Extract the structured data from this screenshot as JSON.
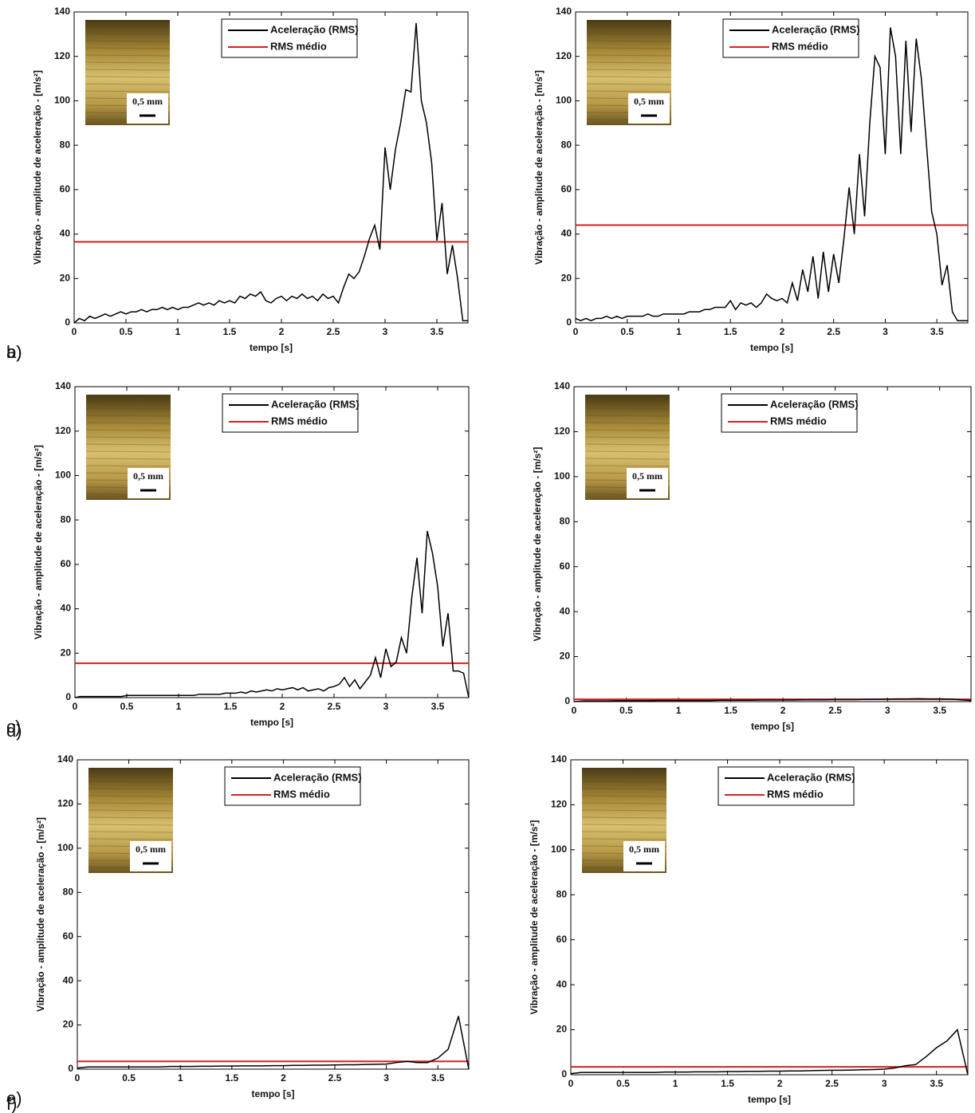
{
  "chart_data": [
    {
      "type": "line",
      "label": "a)",
      "xlabel": "tempo [s]",
      "ylabel": "Vibração - amplitude de aceleração - [m/s²]",
      "scale_label": "0,5 mm",
      "xlim": [
        0,
        3.8
      ],
      "ylim": [
        0,
        140
      ],
      "xticks": [
        0,
        0.5,
        1,
        1.5,
        2,
        2.5,
        3,
        3.5
      ],
      "yticks": [
        0,
        20,
        40,
        60,
        80,
        100,
        120,
        140
      ],
      "x": [
        0,
        0.05,
        0.1,
        0.15,
        0.2,
        0.25,
        0.3,
        0.35,
        0.4,
        0.45,
        0.5,
        0.55,
        0.6,
        0.65,
        0.7,
        0.75,
        0.8,
        0.85,
        0.9,
        0.95,
        1,
        1.05,
        1.1,
        1.15,
        1.2,
        1.25,
        1.3,
        1.35,
        1.4,
        1.45,
        1.5,
        1.55,
        1.6,
        1.65,
        1.7,
        1.75,
        1.8,
        1.85,
        1.9,
        1.95,
        2,
        2.05,
        2.1,
        2.15,
        2.2,
        2.25,
        2.3,
        2.35,
        2.4,
        2.45,
        2.5,
        2.55,
        2.6,
        2.65,
        2.7,
        2.75,
        2.8,
        2.85,
        2.9,
        2.95,
        3,
        3.05,
        3.1,
        3.15,
        3.2,
        3.25,
        3.3,
        3.35,
        3.4,
        3.45,
        3.5,
        3.55,
        3.6,
        3.65,
        3.7,
        3.75,
        3.8
      ],
      "series": [
        {
          "name": "Aceleração (RMS)",
          "color": "#000000",
          "values": [
            0,
            2,
            1,
            3,
            2,
            3,
            4,
            3,
            4,
            5,
            4,
            5,
            5,
            6,
            5,
            6,
            6,
            7,
            6,
            7,
            6,
            7,
            7,
            8,
            9,
            8,
            9,
            8,
            10,
            9,
            10,
            9,
            12,
            11,
            13,
            12,
            14,
            10,
            9,
            11,
            12,
            10,
            12,
            11,
            13,
            11,
            12,
            10,
            13,
            11,
            12,
            9,
            16,
            22,
            20,
            23,
            30,
            38,
            44,
            33,
            79,
            60,
            78,
            90,
            105,
            104,
            135,
            100,
            90,
            72,
            37,
            54,
            22,
            35,
            20,
            1,
            1
          ]
        }
      ],
      "hline": {
        "name": "RMS médio",
        "color": "#d42020",
        "value": 36.5
      }
    },
    {
      "type": "line",
      "label": "b)",
      "xlabel": "tempo [s]",
      "ylabel": "Vibração - amplitude de aceleração - [m/s²]",
      "scale_label": "0,5 mm",
      "xlim": [
        0,
        3.8
      ],
      "ylim": [
        0,
        140
      ],
      "xticks": [
        0,
        0.5,
        1,
        1.5,
        2,
        2.5,
        3,
        3.5
      ],
      "yticks": [
        0,
        20,
        40,
        60,
        80,
        100,
        120,
        140
      ],
      "x": [
        0,
        0.05,
        0.1,
        0.15,
        0.2,
        0.25,
        0.3,
        0.35,
        0.4,
        0.45,
        0.5,
        0.55,
        0.6,
        0.65,
        0.7,
        0.75,
        0.8,
        0.85,
        0.9,
        0.95,
        1,
        1.05,
        1.1,
        1.15,
        1.2,
        1.25,
        1.3,
        1.35,
        1.4,
        1.45,
        1.5,
        1.55,
        1.6,
        1.65,
        1.7,
        1.75,
        1.8,
        1.85,
        1.9,
        1.95,
        2,
        2.05,
        2.1,
        2.15,
        2.2,
        2.25,
        2.3,
        2.35,
        2.4,
        2.45,
        2.5,
        2.55,
        2.6,
        2.65,
        2.7,
        2.75,
        2.8,
        2.85,
        2.9,
        2.95,
        3,
        3.05,
        3.1,
        3.15,
        3.2,
        3.25,
        3.3,
        3.35,
        3.4,
        3.45,
        3.5,
        3.55,
        3.6,
        3.65,
        3.7,
        3.75,
        3.8
      ],
      "series": [
        {
          "name": "Aceleração (RMS)",
          "color": "#000000",
          "values": [
            2,
            1,
            2,
            1,
            2,
            2,
            3,
            2,
            3,
            2,
            3,
            3,
            3,
            3,
            4,
            3,
            3,
            4,
            4,
            4,
            4,
            4,
            5,
            5,
            5,
            6,
            6,
            7,
            7,
            7,
            10,
            6,
            9,
            8,
            9,
            7,
            9,
            13,
            11,
            10,
            11,
            9,
            18,
            10,
            24,
            14,
            30,
            11,
            32,
            14,
            31,
            18,
            38,
            61,
            40,
            76,
            48,
            90,
            120,
            115,
            76,
            133,
            120,
            76,
            127,
            86,
            128,
            110,
            80,
            50,
            40,
            17,
            26,
            5,
            1,
            1,
            1
          ]
        }
      ],
      "hline": {
        "name": "RMS médio",
        "color": "#d42020",
        "value": 44
      }
    },
    {
      "type": "line",
      "label": "c)",
      "xlabel": "tempo [s]",
      "ylabel": "Vibração - amplitude de aceleração - [m/s²]",
      "scale_label": "0,5 mm",
      "xlim": [
        0,
        3.8
      ],
      "ylim": [
        0,
        140
      ],
      "xticks": [
        0,
        0.5,
        1,
        1.5,
        2,
        2.5,
        3,
        3.5
      ],
      "yticks": [
        0,
        20,
        40,
        60,
        80,
        100,
        120,
        140
      ],
      "x": [
        0,
        0.05,
        0.1,
        0.15,
        0.2,
        0.25,
        0.3,
        0.35,
        0.4,
        0.45,
        0.5,
        0.55,
        0.6,
        0.65,
        0.7,
        0.75,
        0.8,
        0.85,
        0.9,
        0.95,
        1,
        1.05,
        1.1,
        1.15,
        1.2,
        1.25,
        1.3,
        1.35,
        1.4,
        1.45,
        1.5,
        1.55,
        1.6,
        1.65,
        1.7,
        1.75,
        1.8,
        1.85,
        1.9,
        1.95,
        2,
        2.05,
        2.1,
        2.15,
        2.2,
        2.25,
        2.3,
        2.35,
        2.4,
        2.45,
        2.5,
        2.55,
        2.6,
        2.65,
        2.7,
        2.75,
        2.8,
        2.85,
        2.9,
        2.95,
        3,
        3.05,
        3.1,
        3.15,
        3.2,
        3.25,
        3.3,
        3.35,
        3.4,
        3.45,
        3.5,
        3.55,
        3.6,
        3.65,
        3.7,
        3.75,
        3.8
      ],
      "series": [
        {
          "name": "Aceleração (RMS)",
          "color": "#000000",
          "values": [
            0,
            0.5,
            0.5,
            0.5,
            0.5,
            0.5,
            0.5,
            0.5,
            0.5,
            0.5,
            1,
            1,
            1,
            1,
            1,
            1,
            1,
            1,
            1,
            1,
            1,
            1,
            1,
            1,
            1.5,
            1.5,
            1.5,
            1.5,
            1.5,
            2,
            2,
            2,
            2.5,
            2,
            3,
            2.5,
            3,
            3.5,
            3,
            4,
            3.5,
            4,
            4.5,
            3.5,
            4.5,
            3,
            3.5,
            4,
            3,
            4.5,
            5,
            6,
            9,
            5,
            8,
            4,
            7,
            10,
            18,
            9,
            22,
            14,
            16,
            27,
            20,
            45,
            63,
            38,
            75,
            65,
            50,
            23,
            38,
            12,
            12,
            11,
            0
          ]
        }
      ],
      "hline": {
        "name": "RMS médio",
        "color": "#d42020",
        "value": 15.5
      }
    },
    {
      "type": "line",
      "label": "d)",
      "xlabel": "tempo [s]",
      "ylabel": "Vibração - amplitude de aceleração - [m/s²]",
      "scale_label": "0,5 mm",
      "xlim": [
        0,
        3.8
      ],
      "ylim": [
        0,
        140
      ],
      "xticks": [
        0,
        0.5,
        1,
        1.5,
        2,
        2.5,
        3,
        3.5
      ],
      "yticks": [
        0,
        20,
        40,
        60,
        80,
        100,
        120,
        140
      ],
      "x": [
        0,
        0.1,
        0.2,
        0.3,
        0.4,
        0.5,
        0.6,
        0.7,
        0.8,
        0.9,
        1,
        1.1,
        1.2,
        1.3,
        1.4,
        1.5,
        1.6,
        1.7,
        1.8,
        1.9,
        2,
        2.1,
        2.2,
        2.3,
        2.4,
        2.5,
        2.6,
        2.7,
        2.8,
        2.9,
        3,
        3.1,
        3.2,
        3.3,
        3.4,
        3.5,
        3.6,
        3.7,
        3.8
      ],
      "series": [
        {
          "name": "Aceleração (RMS)",
          "color": "#000000",
          "values": [
            0,
            0.3,
            0.3,
            0.3,
            0.4,
            0.4,
            0.4,
            0.4,
            0.5,
            0.5,
            0.5,
            0.5,
            0.5,
            0.5,
            0.6,
            0.6,
            0.6,
            0.6,
            0.7,
            0.7,
            0.7,
            0.7,
            0.8,
            0.8,
            0.8,
            0.9,
            0.9,
            0.9,
            1,
            1,
            1.1,
            1.2,
            1.2,
            1.3,
            1.2,
            1.2,
            1.1,
            0.8,
            0.5
          ]
        }
      ],
      "hline": {
        "name": "RMS médio",
        "color": "#d42020",
        "value": 1
      }
    },
    {
      "type": "line",
      "label": "e)",
      "xlabel": "tempo [s]",
      "ylabel": "Vibração - amplitude de aceleração - [m/s²]",
      "scale_label": "0,5 mm",
      "xlim": [
        0,
        3.8
      ],
      "ylim": [
        0,
        140
      ],
      "xticks": [
        0,
        0.5,
        1,
        1.5,
        2,
        2.5,
        3,
        3.5
      ],
      "yticks": [
        0,
        20,
        40,
        60,
        80,
        100,
        120,
        140
      ],
      "x": [
        0,
        0.1,
        0.2,
        0.3,
        0.4,
        0.5,
        0.6,
        0.7,
        0.8,
        0.9,
        1,
        1.1,
        1.2,
        1.3,
        1.4,
        1.5,
        1.6,
        1.7,
        1.8,
        1.9,
        2,
        2.1,
        2.2,
        2.3,
        2.4,
        2.5,
        2.6,
        2.7,
        2.8,
        2.9,
        3,
        3.1,
        3.2,
        3.3,
        3.4,
        3.5,
        3.6,
        3.7,
        3.8
      ],
      "series": [
        {
          "name": "Aceleração (RMS)",
          "color": "#000000",
          "values": [
            0.5,
            1,
            1,
            1,
            1,
            1,
            1,
            1,
            1,
            1.2,
            1.2,
            1.2,
            1.3,
            1.3,
            1.4,
            1.4,
            1.5,
            1.5,
            1.5,
            1.6,
            1.6,
            1.7,
            1.7,
            1.8,
            1.8,
            1.9,
            2,
            2,
            2.1,
            2.2,
            2.3,
            3,
            3.5,
            3,
            3,
            5,
            9,
            24,
            0
          ]
        }
      ],
      "hline": {
        "name": "RMS médio",
        "color": "#d42020",
        "value": 3.5
      }
    },
    {
      "type": "line",
      "label": "f)",
      "xlabel": "tempo [s]",
      "ylabel": "Vibração - amplitude de aceleração - [m/s²]",
      "scale_label": "0,5 mm",
      "xlim": [
        0,
        3.8
      ],
      "ylim": [
        0,
        140
      ],
      "xticks": [
        0,
        0.5,
        1,
        1.5,
        2,
        2.5,
        3,
        3.5
      ],
      "yticks": [
        0,
        20,
        40,
        60,
        80,
        100,
        120,
        140
      ],
      "x": [
        0,
        0.1,
        0.2,
        0.3,
        0.4,
        0.5,
        0.6,
        0.7,
        0.8,
        0.9,
        1,
        1.1,
        1.2,
        1.3,
        1.4,
        1.5,
        1.6,
        1.7,
        1.8,
        1.9,
        2,
        2.1,
        2.2,
        2.3,
        2.4,
        2.5,
        2.6,
        2.7,
        2.8,
        2.9,
        3,
        3.1,
        3.2,
        3.3,
        3.4,
        3.5,
        3.6,
        3.7,
        3.8
      ],
      "series": [
        {
          "name": "Aceleração (RMS)",
          "color": "#000000",
          "values": [
            0.5,
            1,
            1,
            1,
            1,
            1,
            1,
            1,
            1,
            1.2,
            1.2,
            1.2,
            1.3,
            1.3,
            1.3,
            1.4,
            1.4,
            1.5,
            1.5,
            1.6,
            1.6,
            1.7,
            1.7,
            1.8,
            1.9,
            2,
            2,
            2.1,
            2.2,
            2.3,
            2.5,
            3,
            4,
            4.5,
            8,
            12,
            15,
            20,
            0
          ]
        }
      ],
      "hline": {
        "name": "RMS médio",
        "color": "#d42020",
        "value": 3.5
      }
    }
  ]
}
